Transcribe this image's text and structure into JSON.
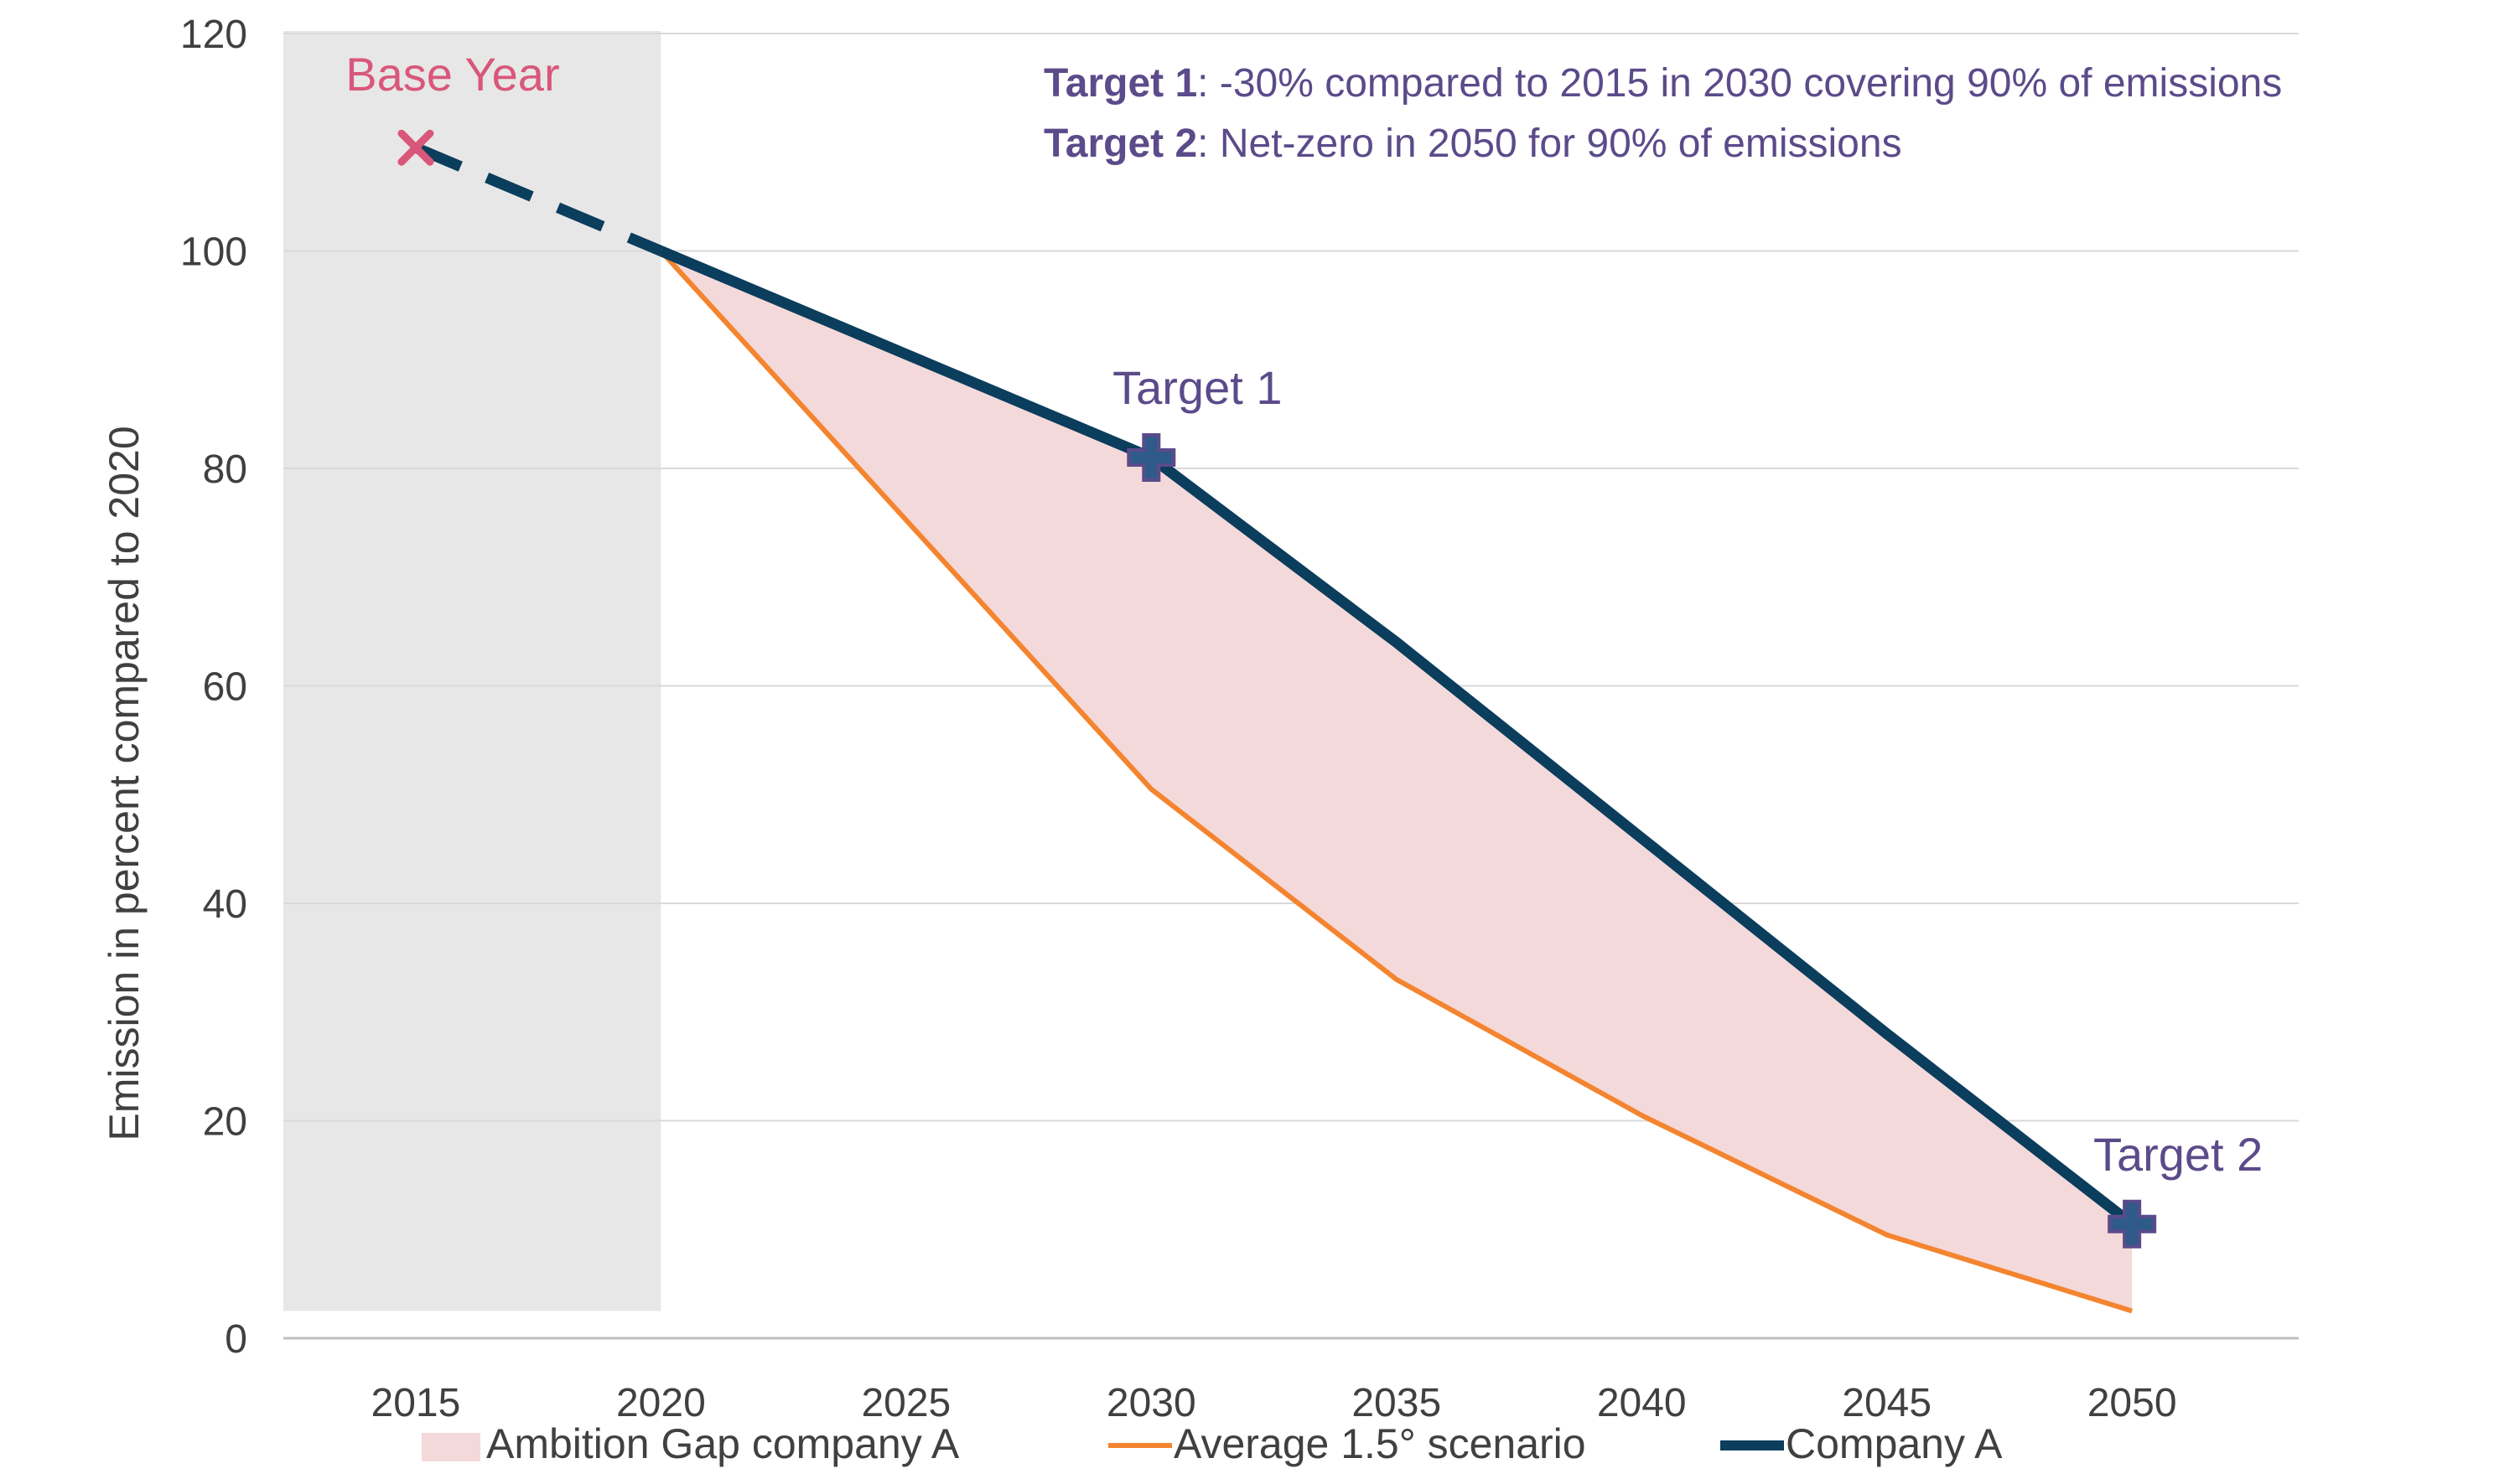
{
  "chart_data": {
    "type": "line",
    "ylabel": "Emission in percent compared to 2020",
    "xlabel": "",
    "x_ticks": [
      "2015",
      "2020",
      "2025",
      "2030",
      "2035",
      "2040",
      "2045",
      "2050"
    ],
    "y_ticks": [
      "0",
      "20",
      "40",
      "60",
      "80",
      "100",
      "120"
    ],
    "xlim": [
      2012.3,
      2053.4
    ],
    "ylim": [
      0,
      120
    ],
    "grid": "horizontal",
    "shaded_region": {
      "from": 2012.3,
      "to": 2020,
      "color": "#e7e7e7"
    },
    "series": [
      {
        "name": "Average 1.5° scenario",
        "color": "#f4842f",
        "x": [
          2020,
          2030,
          2035,
          2040,
          2045,
          2050
        ],
        "values": [
          100,
          50.5,
          33,
          20.5,
          9.5,
          2.5
        ]
      },
      {
        "name": "Company A",
        "color": "#0b3d5c",
        "x": [
          2020,
          2030,
          2035,
          2040,
          2045,
          2050
        ],
        "values": [
          100,
          81,
          64,
          46,
          28,
          10.5
        ]
      },
      {
        "name": "Company A base-year link",
        "color": "#0b3d5c",
        "dashed": true,
        "x": [
          2015,
          2020
        ],
        "values": [
          109.5,
          100
        ]
      }
    ],
    "area": {
      "name": "Ambition Gap company A",
      "color": "#f4d9da",
      "between": [
        "Average 1.5° scenario",
        "Company A"
      ]
    },
    "markers": [
      {
        "label": "Base Year",
        "x": 2015,
        "y": 109.5,
        "shape": "x",
        "color": "#d9577a"
      },
      {
        "label": "Target 1",
        "x": 2030,
        "y": 81,
        "shape": "plus",
        "color": "#2f5a8a"
      },
      {
        "label": "Target 2",
        "x": 2050,
        "y": 10.5,
        "shape": "plus",
        "color": "#2f5a8a"
      }
    ],
    "legend": {
      "placement": "bottom",
      "entries": [
        "Ambition Gap company A",
        "Average 1.5° scenario",
        "Company A"
      ]
    },
    "annotations": [
      {
        "bold": "Target 1",
        "text": ": -30% compared to 2015 in 2030 covering 90% of emissions"
      },
      {
        "bold": "Target 2",
        "text": ": Net-zero in 2050 for 90% of emissions"
      }
    ],
    "annotation_color": "#5b4b8a"
  }
}
